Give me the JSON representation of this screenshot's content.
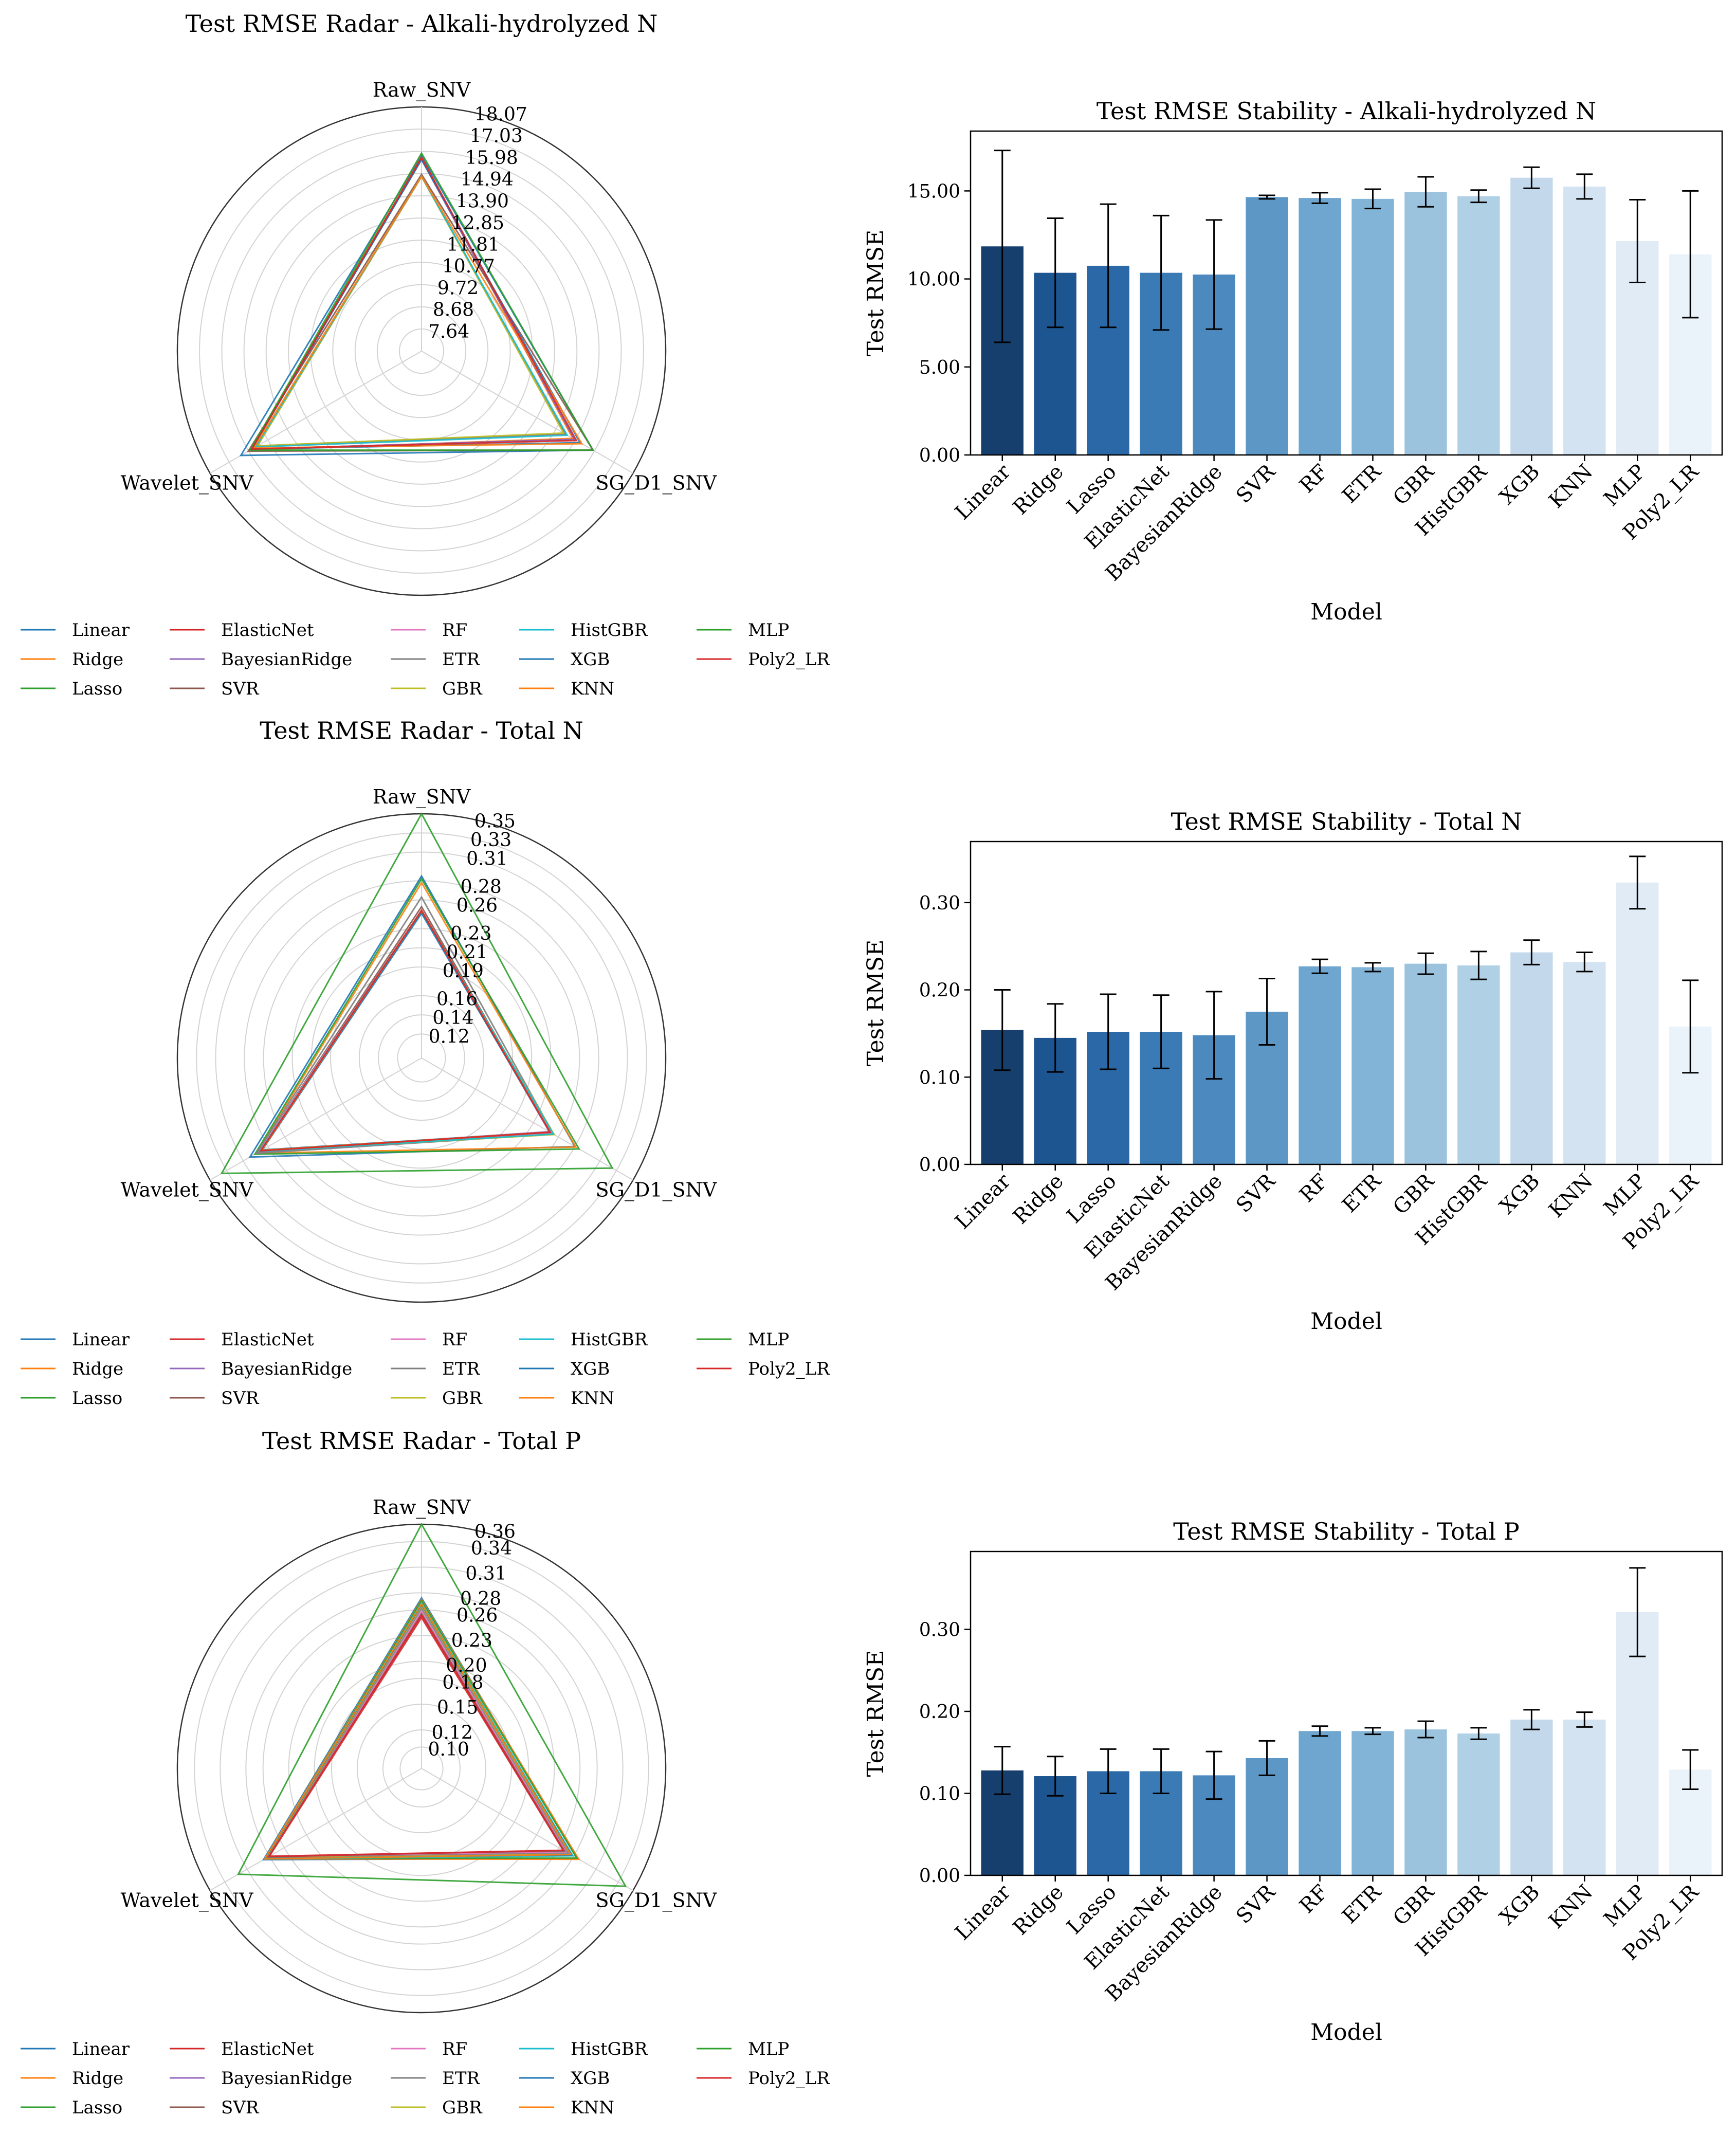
{
  "models": [
    "Linear",
    "Ridge",
    "Lasso",
    "ElasticNet",
    "BayesianRidge",
    "SVR",
    "RF",
    "ETR",
    "GBR",
    "HistGBR",
    "XGB",
    "KNN",
    "MLP",
    "Poly2_LR"
  ],
  "line_colors": [
    "#1f77b4",
    "#ff7f0e",
    "#2ca02c",
    "#d62728",
    "#9467bd",
    "#8c564b",
    "#e377c2",
    "#7f7f7f",
    "#bcbd22",
    "#17becf",
    "#1f77b4",
    "#ff7f0e",
    "#2ca02c",
    "#d62728"
  ],
  "bar_colors": [
    "#173f6e",
    "#1d5590",
    "#2a68a8",
    "#3a7ab5",
    "#4b89bf",
    "#5c97c6",
    "#6ea6cf",
    "#82b4d7",
    "#9cc3de",
    "#b0d0e5",
    "#c3d9eb",
    "#d3e3f1",
    "#e0ebf6",
    "#eaf2fa"
  ],
  "chart_data": [
    {
      "type": "radar",
      "title": "Test RMSE Radar - Alkali-hydrolyzed N",
      "axes": [
        "Raw_SNV",
        "SG_D1_SNV",
        "Wavelet_SNV"
      ],
      "rmin": 6.6,
      "rmax": 18.07,
      "rticks": [
        7.64,
        8.68,
        9.72,
        10.77,
        11.81,
        12.85,
        13.9,
        14.94,
        15.98,
        17.03,
        18.07
      ],
      "rtick_labels": [
        "7.64",
        "8.68",
        "9.72",
        "10.77",
        "11.81",
        "12.85",
        "13.90",
        "14.94",
        "15.98",
        "17.03",
        "18.07"
      ],
      "series": [
        {
          "name": "Linear",
          "values": [
            15.8,
            15.9,
            16.4
          ]
        },
        {
          "name": "Ridge",
          "values": [
            15.7,
            14.8,
            15.9
          ]
        },
        {
          "name": "Lasso",
          "values": [
            15.6,
            14.9,
            15.8
          ]
        },
        {
          "name": "ElasticNet",
          "values": [
            15.6,
            14.9,
            15.8
          ]
        },
        {
          "name": "BayesianRidge",
          "values": [
            15.6,
            14.9,
            15.8
          ]
        },
        {
          "name": "SVR",
          "values": [
            14.9,
            15.9,
            16.0
          ]
        },
        {
          "name": "RF",
          "values": [
            14.8,
            14.4,
            15.6
          ]
        },
        {
          "name": "ETR",
          "values": [
            14.8,
            14.4,
            15.5
          ]
        },
        {
          "name": "GBR",
          "values": [
            14.8,
            14.3,
            15.5
          ]
        },
        {
          "name": "HistGBR",
          "values": [
            14.8,
            14.5,
            15.6
          ]
        },
        {
          "name": "XGB",
          "values": [
            15.6,
            15.2,
            15.8
          ]
        },
        {
          "name": "KNN",
          "values": [
            14.8,
            15.3,
            15.7
          ]
        },
        {
          "name": "MLP",
          "values": [
            15.9,
            15.9,
            15.9
          ]
        },
        {
          "name": "Poly2_LR",
          "values": [
            15.7,
            15.0,
            15.8
          ]
        }
      ]
    },
    {
      "type": "bar",
      "title": "Test RMSE Stability - Alkali-hydrolyzed N",
      "xlabel": "Model",
      "ylabel": "Test RMSE",
      "ylim": [
        0,
        18.4
      ],
      "yticks": [
        0,
        5,
        10,
        15
      ],
      "ytick_labels": [
        "0.00",
        "5.00",
        "10.00",
        "15.00"
      ],
      "categories": [
        "Linear",
        "Ridge",
        "Lasso",
        "ElasticNet",
        "BayesianRidge",
        "SVR",
        "RF",
        "ETR",
        "GBR",
        "HistGBR",
        "XGB",
        "KNN",
        "MLP",
        "Poly2_LR"
      ],
      "values": [
        11.85,
        10.35,
        10.75,
        10.35,
        10.25,
        14.65,
        14.6,
        14.55,
        14.95,
        14.7,
        15.75,
        15.25,
        12.15,
        11.4
      ],
      "errors": [
        5.45,
        3.1,
        3.5,
        3.25,
        3.1,
        0.1,
        0.3,
        0.55,
        0.85,
        0.35,
        0.6,
        0.7,
        2.35,
        3.6
      ]
    },
    {
      "type": "radar",
      "title": "Test RMSE Radar - Total N",
      "axes": [
        "Raw_SNV",
        "SG_D1_SNV",
        "Wavelet_SNV"
      ],
      "rmin": 0.095,
      "rmax": 0.35,
      "rticks": [
        0.12,
        0.14,
        0.16,
        0.19,
        0.21,
        0.23,
        0.26,
        0.28,
        0.31,
        0.33,
        0.35
      ],
      "rtick_labels": [
        "0.12",
        "0.14",
        "0.16",
        "0.19",
        "0.21",
        "0.23",
        "0.26",
        "0.28",
        "0.31",
        "0.33",
        "0.35"
      ],
      "series": [
        {
          "name": "Linear",
          "values": [
            0.285,
            0.28,
            0.302
          ]
        },
        {
          "name": "Ridge",
          "values": [
            0.278,
            0.281,
            0.294
          ]
        },
        {
          "name": "Lasso",
          "values": [
            0.282,
            0.285,
            0.296
          ]
        },
        {
          "name": "ElasticNet",
          "values": [
            0.249,
            0.25,
            0.29
          ]
        },
        {
          "name": "BayesianRidge",
          "values": [
            0.248,
            0.249,
            0.289
          ]
        },
        {
          "name": "SVR",
          "values": [
            0.253,
            0.252,
            0.292
          ]
        },
        {
          "name": "RF",
          "values": [
            0.249,
            0.253,
            0.292
          ]
        },
        {
          "name": "ETR",
          "values": [
            0.263,
            0.254,
            0.294
          ]
        },
        {
          "name": "GBR",
          "values": [
            0.248,
            0.255,
            0.289
          ]
        },
        {
          "name": "HistGBR",
          "values": [
            0.249,
            0.254,
            0.29
          ]
        },
        {
          "name": "XGB",
          "values": [
            0.246,
            0.25,
            0.287
          ]
        },
        {
          "name": "KNN",
          "values": [
            0.249,
            0.25,
            0.288
          ]
        },
        {
          "name": "MLP",
          "values": [
            0.35,
            0.325,
            0.336
          ]
        },
        {
          "name": "Poly2_LR",
          "values": [
            0.249,
            0.25,
            0.289
          ]
        }
      ]
    },
    {
      "type": "bar",
      "title": "Test RMSE Stability - Total N",
      "xlabel": "Model",
      "ylabel": "Test RMSE",
      "ylim": [
        0,
        0.37
      ],
      "yticks": [
        0,
        0.1,
        0.2,
        0.3
      ],
      "ytick_labels": [
        "0.00",
        "0.10",
        "0.20",
        "0.30"
      ],
      "categories": [
        "Linear",
        "Ridge",
        "Lasso",
        "ElasticNet",
        "BayesianRidge",
        "SVR",
        "RF",
        "ETR",
        "GBR",
        "HistGBR",
        "XGB",
        "KNN",
        "MLP",
        "Poly2_LR"
      ],
      "values": [
        0.154,
        0.145,
        0.152,
        0.152,
        0.148,
        0.175,
        0.227,
        0.226,
        0.23,
        0.228,
        0.243,
        0.232,
        0.323,
        0.158
      ],
      "errors": [
        0.046,
        0.039,
        0.043,
        0.042,
        0.05,
        0.038,
        0.008,
        0.005,
        0.012,
        0.016,
        0.014,
        0.011,
        0.03,
        0.053
      ]
    },
    {
      "type": "radar",
      "title": "Test RMSE Radar - Total P",
      "axes": [
        "Raw_SNV",
        "SG_D1_SNV",
        "Wavelet_SNV"
      ],
      "rmin": 0.075,
      "rmax": 0.36,
      "rticks": [
        0.1,
        0.12,
        0.15,
        0.18,
        0.2,
        0.23,
        0.26,
        0.28,
        0.31,
        0.34,
        0.36
      ],
      "rtick_labels": [
        "0.10",
        "0.12",
        "0.15",
        "0.18",
        "0.20",
        "0.23",
        "0.26",
        "0.28",
        "0.31",
        "0.34",
        "0.36"
      ],
      "series": [
        {
          "name": "Linear",
          "values": [
            0.274,
            0.285,
            0.288
          ]
        },
        {
          "name": "Ridge",
          "values": [
            0.272,
            0.287,
            0.286
          ]
        },
        {
          "name": "Lasso",
          "values": [
            0.271,
            0.284,
            0.285
          ]
        },
        {
          "name": "ElasticNet",
          "values": [
            0.251,
            0.266,
            0.28
          ]
        },
        {
          "name": "BayesianRidge",
          "values": [
            0.254,
            0.267,
            0.281
          ]
        },
        {
          "name": "SVR",
          "values": [
            0.256,
            0.269,
            0.283
          ]
        },
        {
          "name": "RF",
          "values": [
            0.259,
            0.271,
            0.282
          ]
        },
        {
          "name": "ETR",
          "values": [
            0.262,
            0.273,
            0.283
          ]
        },
        {
          "name": "GBR",
          "values": [
            0.265,
            0.276,
            0.284
          ]
        },
        {
          "name": "HistGBR",
          "values": [
            0.268,
            0.279,
            0.286
          ]
        },
        {
          "name": "XGB",
          "values": [
            0.266,
            0.277,
            0.285
          ]
        },
        {
          "name": "KNN",
          "values": [
            0.267,
            0.276,
            0.286
          ]
        },
        {
          "name": "MLP",
          "values": [
            0.36,
            0.35,
            0.322
          ]
        },
        {
          "name": "Poly2_LR",
          "values": [
            0.254,
            0.266,
            0.281
          ]
        }
      ]
    },
    {
      "type": "bar",
      "title": "Test RMSE Stability - Total P",
      "xlabel": "Model",
      "ylabel": "Test RMSE",
      "ylim": [
        0,
        0.395
      ],
      "yticks": [
        0,
        0.1,
        0.2,
        0.3
      ],
      "ytick_labels": [
        "0.00",
        "0.10",
        "0.20",
        "0.30"
      ],
      "categories": [
        "Linear",
        "Ridge",
        "Lasso",
        "ElasticNet",
        "BayesianRidge",
        "SVR",
        "RF",
        "ETR",
        "GBR",
        "HistGBR",
        "XGB",
        "KNN",
        "MLP",
        "Poly2_LR"
      ],
      "values": [
        0.128,
        0.121,
        0.127,
        0.127,
        0.122,
        0.143,
        0.176,
        0.176,
        0.178,
        0.173,
        0.19,
        0.19,
        0.321,
        0.129
      ],
      "errors": [
        0.029,
        0.024,
        0.027,
        0.027,
        0.029,
        0.021,
        0.006,
        0.004,
        0.01,
        0.007,
        0.012,
        0.009,
        0.054,
        0.024
      ]
    }
  ]
}
